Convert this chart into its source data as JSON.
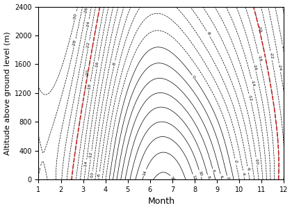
{
  "title": "",
  "xlabel": "Month",
  "ylabel": "Altitude above ground level (m)",
  "xlim": [
    1,
    12
  ],
  "ylim": [
    0,
    2400
  ],
  "xticks": [
    1,
    2,
    3,
    4,
    5,
    6,
    7,
    8,
    9,
    10,
    11,
    12
  ],
  "yticks": [
    0,
    400,
    800,
    1200,
    1600,
    2000,
    2400
  ],
  "contour_levels": [
    -30,
    -28,
    -26,
    -24,
    -22,
    -20,
    -18,
    -16,
    -14,
    -12,
    -10,
    -8,
    -6,
    -4,
    -2,
    0,
    2,
    4,
    6,
    8,
    10,
    12,
    14,
    16
  ],
  "highlight_level": -20,
  "highlight_color": "#cc2222",
  "contour_color": "black",
  "figsize": [
    4.2,
    3.02
  ],
  "dpi": 100
}
